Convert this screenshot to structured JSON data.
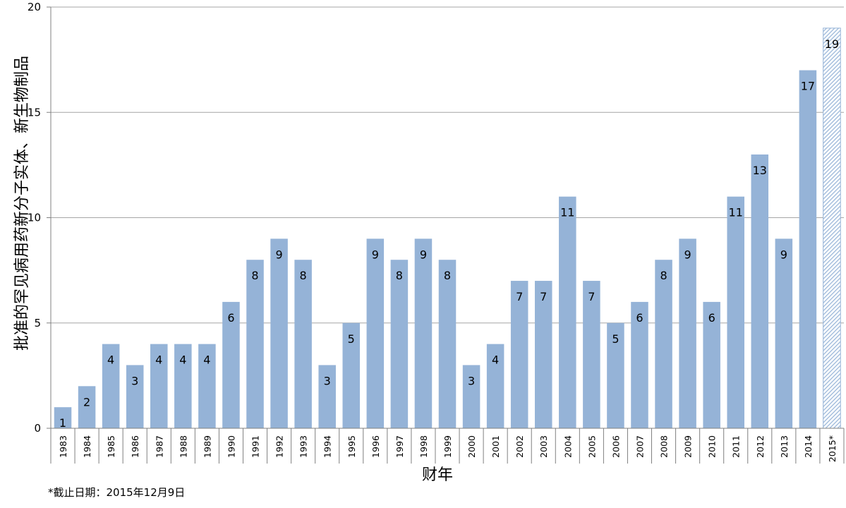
{
  "chart_data": {
    "type": "bar",
    "title": "",
    "xlabel": "财年",
    "ylabel": "批准的罕见病用药新分子实体、新生物制品",
    "ylim": [
      0,
      20
    ],
    "yticks": [
      "0",
      "5",
      "10",
      "15",
      "20"
    ],
    "categories": [
      "1983",
      "1984",
      "1985",
      "1986",
      "1987",
      "1988",
      "1989",
      "1990",
      "1991",
      "1992",
      "1993",
      "1994",
      "1995",
      "1996",
      "1997",
      "1998",
      "1999",
      "2000",
      "2001",
      "2002",
      "2003",
      "2004",
      "2005",
      "2006",
      "2007",
      "2008",
      "2009",
      "2010",
      "2011",
      "2012",
      "2013",
      "2014",
      "2015*"
    ],
    "values": [
      1,
      2,
      4,
      3,
      4,
      4,
      4,
      6,
      8,
      9,
      8,
      3,
      5,
      9,
      8,
      9,
      8,
      3,
      4,
      7,
      7,
      11,
      7,
      5,
      6,
      8,
      9,
      6,
      11,
      13,
      9,
      17,
      19
    ],
    "hatched_categories": [
      "2015*"
    ],
    "grid": true,
    "legend": "none",
    "colors": {
      "bar": "#95b3d7",
      "bar_stroke": "#ffffff",
      "hatch": "#95b3d7",
      "grid": "#a6a6a6",
      "axis": "#808080"
    }
  },
  "footnote": "*截止日期：2015年12月9日"
}
